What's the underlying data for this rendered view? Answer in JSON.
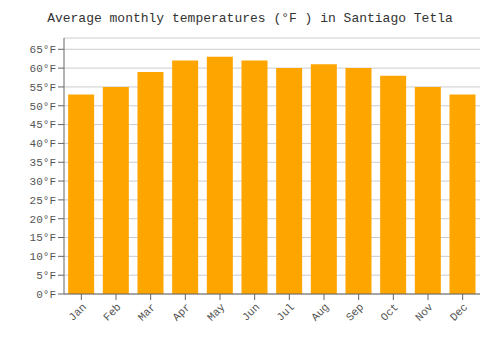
{
  "chart_data": {
    "type": "bar",
    "title": "Average monthly temperatures (°F ) in Santiago Tetla",
    "categories": [
      "Jan",
      "Feb",
      "Mar",
      "Apr",
      "May",
      "Jun",
      "Jul",
      "Aug",
      "Sep",
      "Oct",
      "Nov",
      "Dec"
    ],
    "values": [
      53,
      55,
      59,
      62,
      63,
      62,
      60,
      61,
      60,
      58,
      55,
      53
    ],
    "color": "#FFA500",
    "ylim": [
      0,
      68
    ],
    "yticks": [
      {
        "value": 0,
        "label": "0°F"
      },
      {
        "value": 5,
        "label": "5°F"
      },
      {
        "value": 10,
        "label": "10°F"
      },
      {
        "value": 15,
        "label": "15°F"
      },
      {
        "value": 20,
        "label": "20°F"
      },
      {
        "value": 25,
        "label": "25°F"
      },
      {
        "value": 30,
        "label": "30°F"
      },
      {
        "value": 35,
        "label": "35°F"
      },
      {
        "value": 40,
        "label": "40°F"
      },
      {
        "value": 45,
        "label": "45°F"
      },
      {
        "value": 50,
        "label": "50°F"
      },
      {
        "value": 55,
        "label": "55°F"
      },
      {
        "value": 60,
        "label": "60°F"
      },
      {
        "value": 65,
        "label": "65°F"
      }
    ],
    "grid": true
  }
}
